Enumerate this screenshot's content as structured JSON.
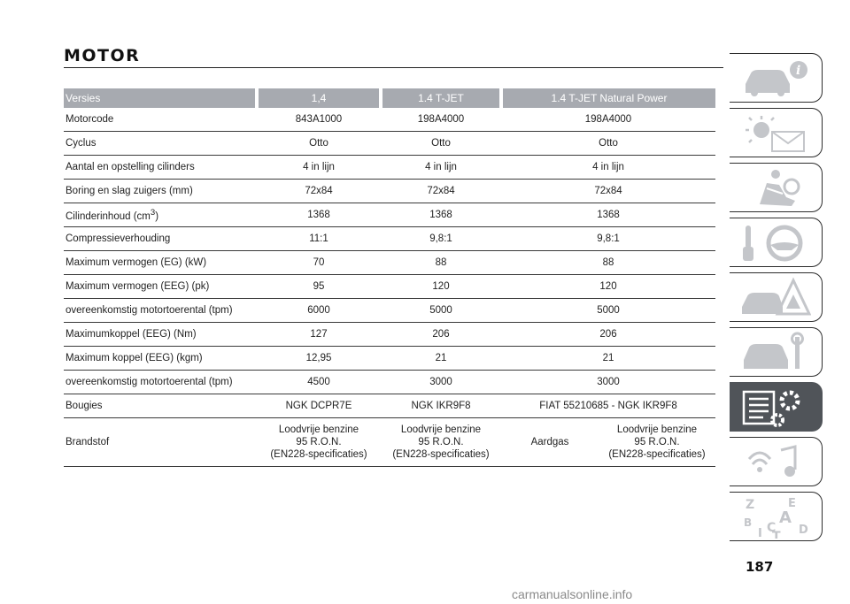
{
  "section_title": "MOTOR",
  "table": {
    "headers": [
      "Versies",
      "1,4",
      "1.4 T-JET",
      "1.4 T-JET Natural Power"
    ],
    "rows": [
      {
        "label": "Motorcode",
        "v1": "843A1000",
        "v2": "198A4000",
        "v3": "198A4000"
      },
      {
        "label": "Cyclus",
        "v1": "Otto",
        "v2": "Otto",
        "v3": "Otto"
      },
      {
        "label": "Aantal en opstelling cilinders",
        "v1": "4 in lijn",
        "v2": "4 in lijn",
        "v3": "4 in lijn"
      },
      {
        "label": "Boring en slag zuigers (mm)",
        "v1": "72x84",
        "v2": "72x84",
        "v3": "72x84"
      },
      {
        "label": "Cilinderinhoud (cm",
        "label_sup": "3",
        "label_end": ")",
        "v1": "1368",
        "v2": "1368",
        "v3": "1368"
      },
      {
        "label": "Compressieverhouding",
        "v1": "11:1",
        "v2": "9,8:1",
        "v3": "9,8:1"
      },
      {
        "label": "Maximum vermogen (EG) (kW)",
        "v1": "70",
        "v2": "88",
        "v3": "88"
      },
      {
        "label": "Maximum vermogen (EEG) (pk)",
        "v1": "95",
        "v2": "120",
        "v3": "120"
      },
      {
        "label": "overeenkomstig motortoerental (tpm)",
        "v1": "6000",
        "v2": "5000",
        "v3": "5000"
      },
      {
        "label": "Maximumkoppel (EEG) (Nm)",
        "v1": "127",
        "v2": "206",
        "v3": "206"
      },
      {
        "label": "Maximum koppel (EEG) (kgm)",
        "v1": "12,95",
        "v2": "21",
        "v3": "21"
      },
      {
        "label": "overeenkomstig motortoerental (tpm)",
        "v1": "4500",
        "v2": "3000",
        "v3": "3000"
      },
      {
        "label": "Bougies",
        "v1": "NGK DCPR7E",
        "v2": "NGK IKR9F8",
        "v3": "FIAT 55210685 - NGK IKR9F8"
      }
    ],
    "fuel_row": {
      "label": "Brandstof",
      "v1": [
        "Loodvrije benzine",
        "95 R.O.N.",
        "(EN228-specificaties)"
      ],
      "v2": [
        "Loodvrije benzine",
        "95 R.O.N.",
        "(EN228-specificaties)"
      ],
      "v3a": "Aardgas",
      "v3b": [
        "Loodvrije benzine",
        "95 R.O.N.",
        "(EN228-specificaties)"
      ]
    }
  },
  "sidebar_tabs": [
    {
      "icon": "car-info-icon",
      "active": false
    },
    {
      "icon": "warning-lights-icon",
      "active": false
    },
    {
      "icon": "airbag-seat-icon",
      "active": false
    },
    {
      "icon": "steering-wheel-key-icon",
      "active": false
    },
    {
      "icon": "car-emergency-icon",
      "active": false
    },
    {
      "icon": "car-maintenance-icon",
      "active": false
    },
    {
      "icon": "specifications-gear-icon",
      "active": true
    },
    {
      "icon": "multimedia-icon",
      "active": false
    },
    {
      "icon": "index-letters-icon",
      "active": false
    }
  ],
  "index_letters": [
    "Z",
    "E",
    "B",
    "A",
    "I",
    "C",
    "D",
    "T"
  ],
  "page_number": "187",
  "watermark": "carmanualsonline.info",
  "colors": {
    "header_bg": "#a7aab0",
    "active_tab": "#505459",
    "icon_gray": "#c4c6ca"
  }
}
